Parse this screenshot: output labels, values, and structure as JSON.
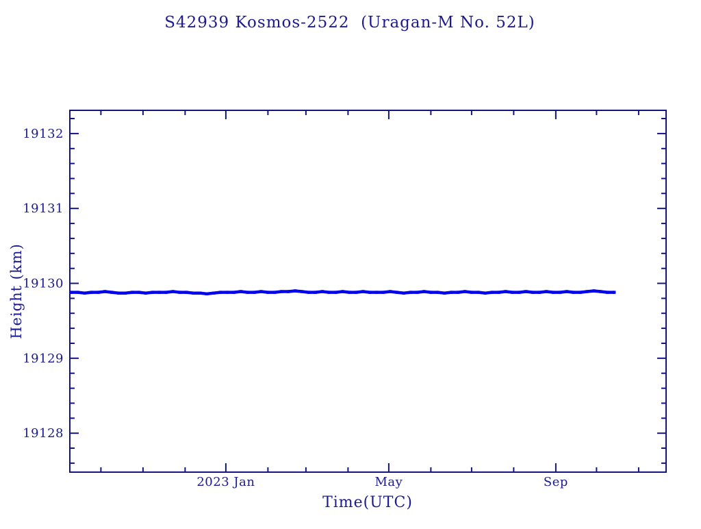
{
  "chart_data": {
    "type": "scatter",
    "title": "S42939 Kosmos-2522  (Uragan-M No. 52L)",
    "xlabel": "Time(UTC)",
    "ylabel": "Height (km)",
    "legend": null,
    "grid": false,
    "colors": {
      "text": "#1b1b8f",
      "axis": "#14147e",
      "data": "#0505ec",
      "background": "#ffffff"
    },
    "x_axis": {
      "unit": "days relative to 2023-01-01 (month ticks)",
      "xlim": [
        -114.9,
        324.2
      ],
      "major_ticks": [
        {
          "day": 0,
          "label": "2023 Jan"
        },
        {
          "day": 120,
          "label": "May"
        },
        {
          "day": 243,
          "label": "Sep"
        }
      ],
      "minor_ticks_days": [
        -92,
        -61,
        -30,
        31,
        59,
        90,
        151,
        181,
        212,
        273,
        304
      ]
    },
    "y_axis": {
      "ylim": [
        19127.48,
        19132.31
      ],
      "major_ticks": [
        {
          "value": 19132,
          "label": "19132"
        },
        {
          "value": 19131,
          "label": "19131"
        },
        {
          "value": 19130,
          "label": "19130"
        },
        {
          "value": 19129,
          "label": "19129"
        },
        {
          "value": 19128,
          "label": "19128"
        }
      ],
      "minor_tick_step": 0.2
    },
    "series": [
      {
        "name": "height",
        "style": "dense-point-band",
        "points": [
          [
            -114,
            19129.88
          ],
          [
            -109,
            19129.88
          ],
          [
            -104,
            19129.87
          ],
          [
            -99,
            19129.88
          ],
          [
            -94,
            19129.88
          ],
          [
            -89,
            19129.89
          ],
          [
            -84,
            19129.88
          ],
          [
            -79,
            19129.87
          ],
          [
            -74,
            19129.87
          ],
          [
            -69,
            19129.88
          ],
          [
            -64,
            19129.88
          ],
          [
            -59,
            19129.87
          ],
          [
            -54,
            19129.88
          ],
          [
            -49,
            19129.88
          ],
          [
            -44,
            19129.88
          ],
          [
            -39,
            19129.89
          ],
          [
            -34,
            19129.88
          ],
          [
            -29,
            19129.88
          ],
          [
            -24,
            19129.87
          ],
          [
            -19,
            19129.87
          ],
          [
            -14,
            19129.86
          ],
          [
            -9,
            19129.87
          ],
          [
            -4,
            19129.88
          ],
          [
            1,
            19129.88
          ],
          [
            6,
            19129.88
          ],
          [
            11,
            19129.89
          ],
          [
            16,
            19129.88
          ],
          [
            21,
            19129.88
          ],
          [
            26,
            19129.89
          ],
          [
            31,
            19129.88
          ],
          [
            36,
            19129.88
          ],
          [
            41,
            19129.89
          ],
          [
            46,
            19129.89
          ],
          [
            51,
            19129.9
          ],
          [
            56,
            19129.89
          ],
          [
            61,
            19129.88
          ],
          [
            66,
            19129.88
          ],
          [
            71,
            19129.89
          ],
          [
            76,
            19129.88
          ],
          [
            81,
            19129.88
          ],
          [
            86,
            19129.89
          ],
          [
            91,
            19129.88
          ],
          [
            96,
            19129.88
          ],
          [
            101,
            19129.89
          ],
          [
            106,
            19129.88
          ],
          [
            111,
            19129.88
          ],
          [
            116,
            19129.88
          ],
          [
            121,
            19129.89
          ],
          [
            126,
            19129.88
          ],
          [
            131,
            19129.87
          ],
          [
            136,
            19129.88
          ],
          [
            141,
            19129.88
          ],
          [
            146,
            19129.89
          ],
          [
            151,
            19129.88
          ],
          [
            156,
            19129.88
          ],
          [
            161,
            19129.87
          ],
          [
            166,
            19129.88
          ],
          [
            171,
            19129.88
          ],
          [
            176,
            19129.89
          ],
          [
            181,
            19129.88
          ],
          [
            186,
            19129.88
          ],
          [
            191,
            19129.87
          ],
          [
            196,
            19129.88
          ],
          [
            201,
            19129.88
          ],
          [
            206,
            19129.89
          ],
          [
            211,
            19129.88
          ],
          [
            216,
            19129.88
          ],
          [
            221,
            19129.89
          ],
          [
            226,
            19129.88
          ],
          [
            231,
            19129.88
          ],
          [
            236,
            19129.89
          ],
          [
            241,
            19129.88
          ],
          [
            246,
            19129.88
          ],
          [
            251,
            19129.89
          ],
          [
            256,
            19129.88
          ],
          [
            261,
            19129.88
          ],
          [
            266,
            19129.89
          ],
          [
            271,
            19129.9
          ],
          [
            276,
            19129.89
          ],
          [
            281,
            19129.88
          ],
          [
            286,
            19129.88
          ]
        ]
      }
    ]
  }
}
